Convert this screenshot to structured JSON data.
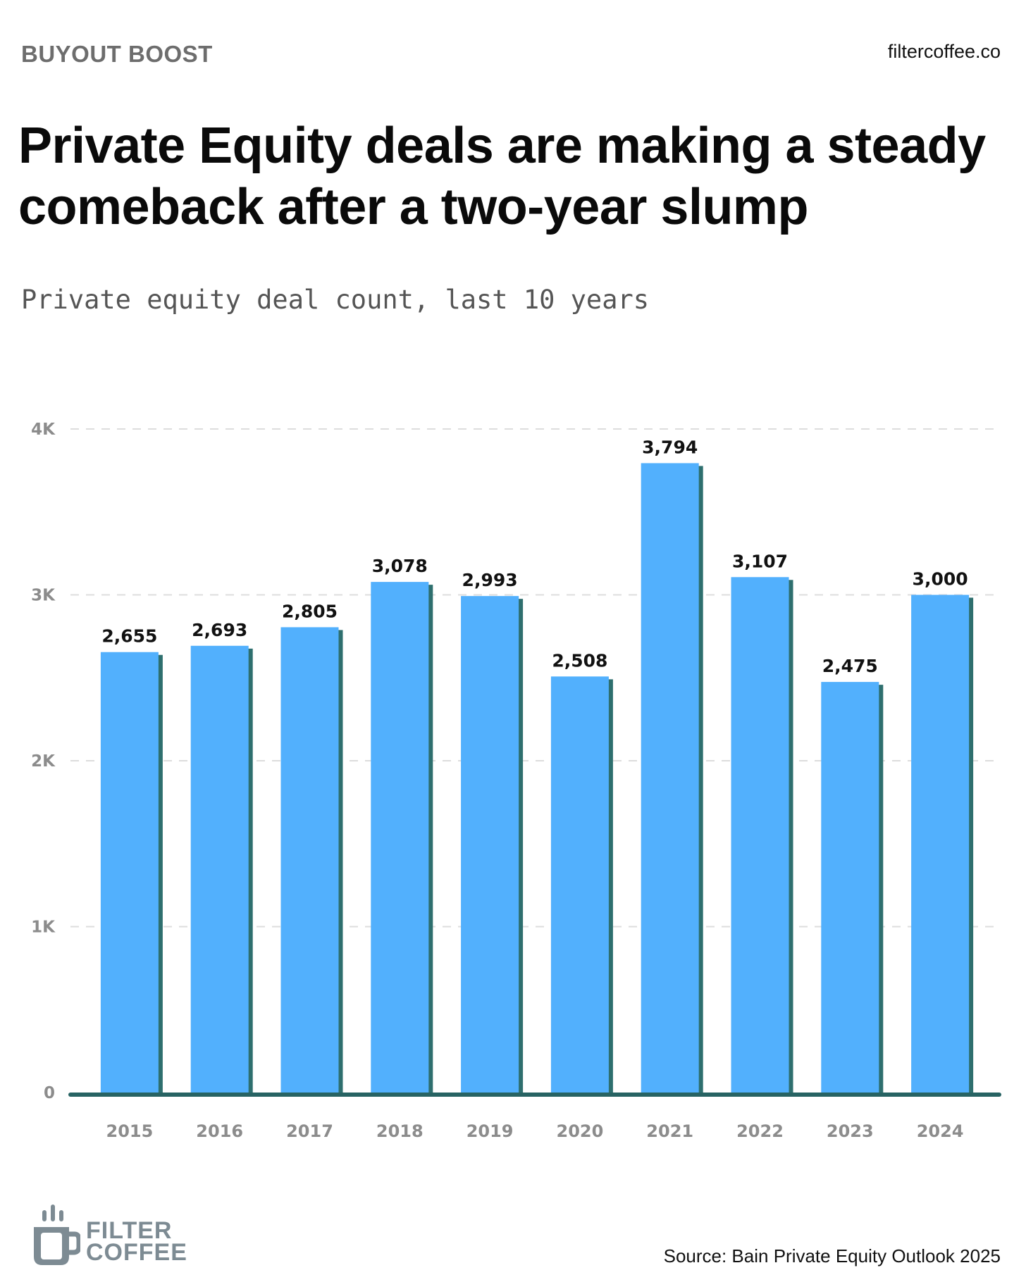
{
  "header": {
    "kicker": "BUYOUT BOOST",
    "site": "filtercoffee.co",
    "title": "Private Equity deals are making a steady comeback after a two-year slump",
    "subtitle": "Private equity deal count, last 10 years"
  },
  "footer": {
    "logo_line1": "FILTER",
    "logo_line2": "COFFEE",
    "logo_icon": "coffee-cup-icon",
    "source": "Source: Bain Private Equity Outlook 2025"
  },
  "colors": {
    "bar": "#52b0fd",
    "bar_shadow": "#2e6f6e",
    "baseline": "#276363",
    "grid": "#dddddd",
    "logo": "#7d8b93"
  },
  "chart_data": {
    "type": "bar",
    "title": "",
    "xlabel": "",
    "ylabel": "",
    "categories": [
      "2015",
      "2016",
      "2017",
      "2018",
      "2019",
      "2020",
      "2021",
      "2022",
      "2023",
      "2024"
    ],
    "values": [
      2655,
      2693,
      2805,
      3078,
      2993,
      2508,
      3794,
      3107,
      2475,
      3000
    ],
    "value_labels": [
      "2,655",
      "2,693",
      "2,805",
      "3,078",
      "2,993",
      "2,508",
      "3,794",
      "3,107",
      "2,475",
      "3,000"
    ],
    "ylim": [
      0,
      4000
    ],
    "yticks": [
      0,
      1000,
      2000,
      3000,
      4000
    ],
    "ytick_labels": [
      "0",
      "1K",
      "2K",
      "3K",
      "4K"
    ],
    "grid": true,
    "grid_style": "dashed",
    "legend": "none"
  }
}
